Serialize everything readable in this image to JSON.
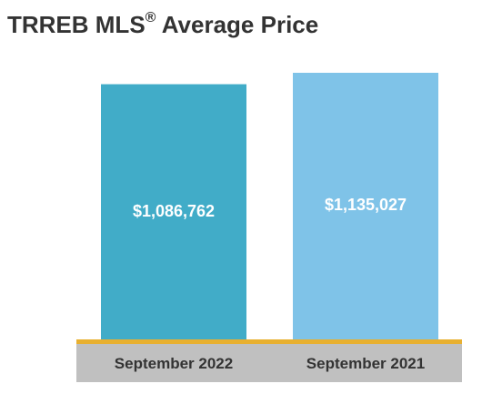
{
  "chart_data": {
    "type": "bar",
    "title_main": "TRREB MLS",
    "title_mark": "®",
    "title_rest": " Average Price",
    "categories": [
      "September 2022",
      "September 2021"
    ],
    "values": [
      1086762,
      1135027
    ],
    "value_labels": [
      "$1,086,762",
      "$1,135,027"
    ],
    "colors": [
      "#41acc8",
      "#7fc3e8"
    ],
    "baseline_color": "#e8b030",
    "category_band_color": "#c0c0c0",
    "grid": false
  }
}
